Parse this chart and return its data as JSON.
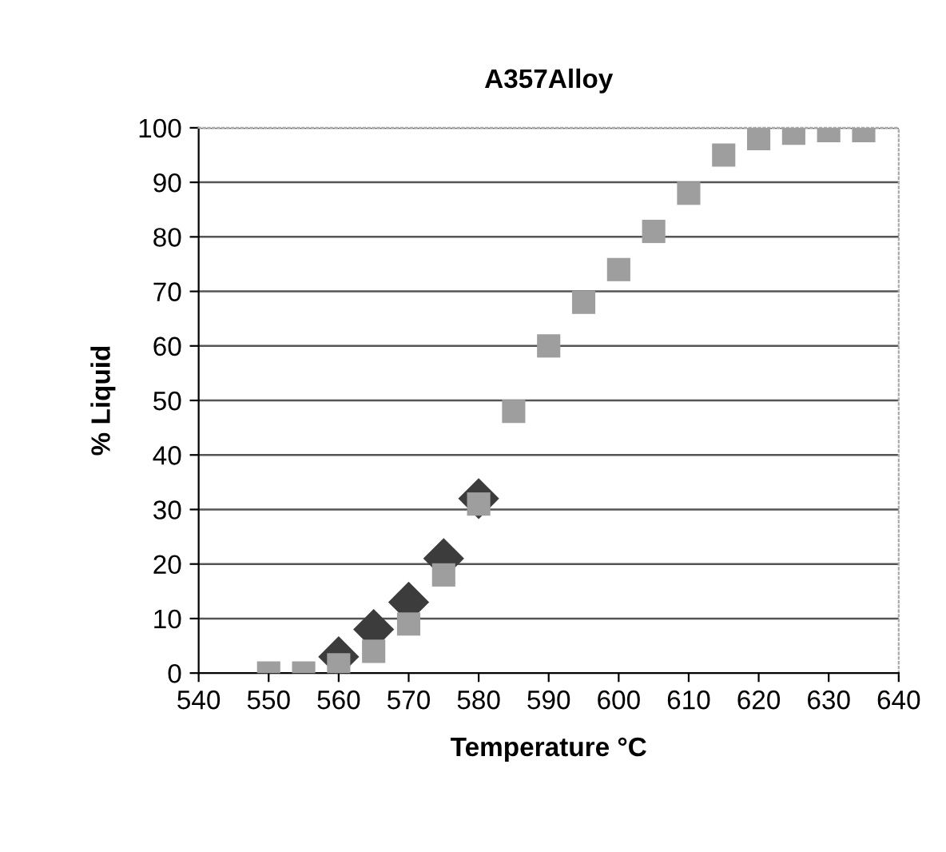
{
  "chart_data": {
    "type": "scatter",
    "title": "A357Alloy",
    "xlabel": "Temperature °C",
    "ylabel": "% Liquid",
    "series": [
      {
        "color": "#3c3c3c",
        "marker": "diamond",
        "x": [
          560,
          565,
          570,
          575,
          580
        ],
        "values": [
          3,
          8,
          13,
          21,
          32
        ]
      },
      {
        "color": "#9e9e9e",
        "marker": "square",
        "x": [
          550,
          555,
          560,
          565,
          570,
          575,
          580,
          585,
          590,
          595,
          600,
          605,
          610,
          615,
          620,
          625,
          630,
          635
        ],
        "values": [
          0,
          0,
          1.5,
          4,
          9,
          18,
          31,
          48,
          60,
          68,
          74,
          81,
          88,
          95,
          98,
          99,
          99.5,
          99.5
        ]
      }
    ],
    "xlim": [
      540,
      640
    ],
    "xticks": [
      540,
      550,
      560,
      570,
      580,
      590,
      600,
      610,
      620,
      630,
      640
    ],
    "ylim": [
      0,
      100
    ],
    "yticks": [
      0,
      10,
      20,
      30,
      40,
      50,
      60,
      70,
      80,
      90,
      100
    ],
    "grid": "y",
    "legend": false
  }
}
